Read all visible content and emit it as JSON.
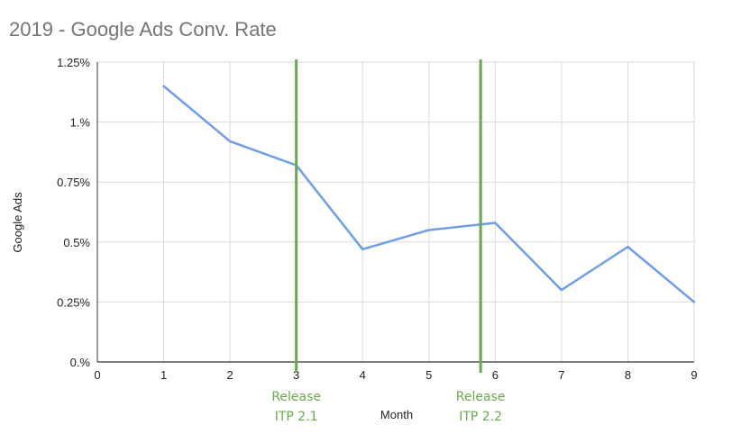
{
  "chart_data": {
    "type": "line",
    "title": "2019 - Google Ads Conv. Rate",
    "xlabel": "Month",
    "ylabel": "Google Ads",
    "x": [
      1,
      2,
      3,
      4,
      5,
      6,
      7,
      8,
      9
    ],
    "series": [
      {
        "values": [
          1.15,
          0.92,
          0.82,
          0.47,
          0.55,
          0.58,
          0.3,
          0.48,
          0.25
        ],
        "color": "#6d9eeb"
      }
    ],
    "xlim": [
      0,
      9
    ],
    "ylim": [
      0,
      1.25
    ],
    "x_ticks": [
      "0",
      "1",
      "2",
      "3",
      "4",
      "5",
      "6",
      "7",
      "8",
      "9"
    ],
    "y_ticks": [
      "0.%",
      "0.25%",
      "0.5%",
      "0.75%",
      "1.%",
      "1.25%"
    ],
    "y_tick_values": [
      0,
      0.25,
      0.5,
      0.75,
      1.0,
      1.25
    ],
    "grid": true,
    "legend": "none",
    "annotations": [
      {
        "x": 3,
        "line1": "Release",
        "line2": "ITP 2.1",
        "color": "#6aa84f"
      },
      {
        "x": 5.78,
        "line1": "Release",
        "line2": "ITP 2.2",
        "color": "#6aa84f"
      }
    ]
  }
}
